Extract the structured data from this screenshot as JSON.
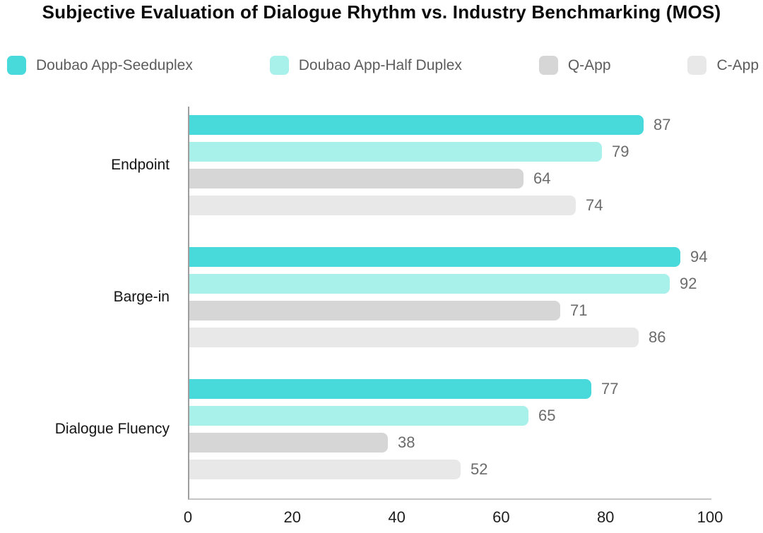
{
  "title": "Subjective Evaluation of Dialogue Rhythm vs. Industry Benchmarking (MOS)",
  "colors": {
    "series": [
      "#48D9DB",
      "#A8F0EA",
      "#D6D6D6",
      "#E8E8E8"
    ],
    "title_text": "#0A0A0A",
    "legend_text": "#5C5C5C",
    "category_text": "#141414",
    "value_label_text": "#6B6B6B",
    "tick_text": "#1E1E1E",
    "axis_line_left": "#9E9E9E",
    "axis_line_bottom": "#C6C6C6"
  },
  "chart_data": {
    "type": "bar",
    "orientation": "horizontal",
    "title": "Subjective Evaluation of Dialogue Rhythm vs. Industry Benchmarking (MOS)",
    "categories": [
      "Endpoint",
      "Barge-in",
      "Dialogue Fluency"
    ],
    "series": [
      {
        "name": "Doubao App-Seeduplex",
        "color": "#48D9DB",
        "values": [
          87,
          94,
          77
        ]
      },
      {
        "name": "Doubao App-Half Duplex",
        "color": "#A8F0EA",
        "values": [
          79,
          92,
          65
        ]
      },
      {
        "name": "Q-App",
        "color": "#D6D6D6",
        "values": [
          64,
          71,
          38
        ]
      },
      {
        "name": "C-App",
        "color": "#E8E8E8",
        "values": [
          74,
          86,
          52
        ]
      }
    ],
    "xlabel": "",
    "ylabel": "",
    "xlim": [
      0,
      100
    ],
    "x_ticks": [
      0,
      20,
      40,
      60,
      80,
      100
    ],
    "value_labels_shown": true,
    "legend_position": "top",
    "grid": false
  }
}
